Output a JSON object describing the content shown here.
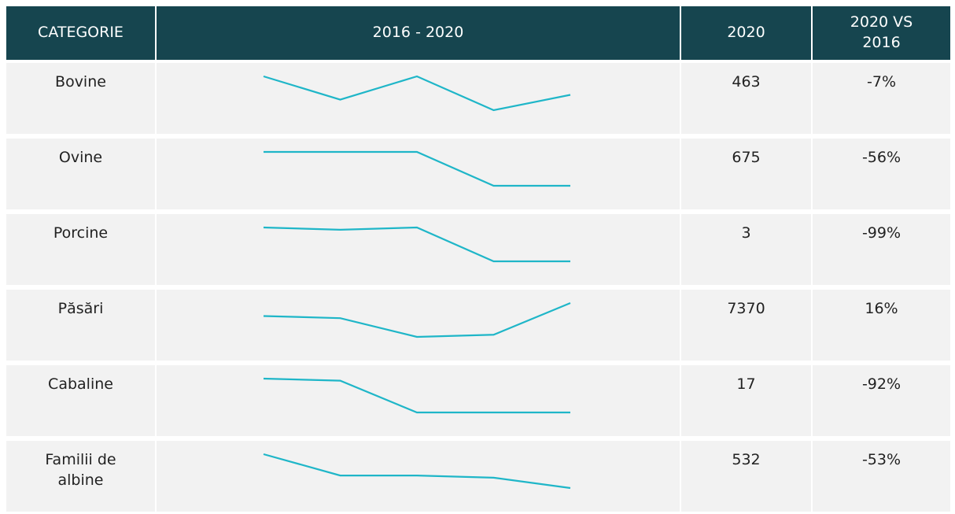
{
  "table": {
    "columns": [
      "CATEGORIE",
      "2016 - 2020",
      "2020",
      "2020 VS 2016"
    ],
    "line_color": "#1fb6c8",
    "rows": [
      {
        "category": "Bovine",
        "trend": [
          498,
          454,
          498,
          434,
          463
        ],
        "value": 463,
        "change": "-7%"
      },
      {
        "category": "Ovine",
        "trend": [
          1534,
          1534,
          1534,
          675,
          675
        ],
        "value": 675,
        "change": "-56%"
      },
      {
        "category": "Porcine",
        "trend": [
          300,
          280,
          300,
          3,
          3
        ],
        "value": 3,
        "change": "-99%"
      },
      {
        "category": "Păsări",
        "trend": [
          6353,
          6184,
          4714,
          4883,
          7370
        ],
        "value": 7370,
        "change": "16%"
      },
      {
        "category": "Cabaline",
        "trend": [
          212,
          200,
          17,
          17,
          17
        ],
        "value": 17,
        "change": "-92%"
      },
      {
        "category": "Familii de albine",
        "trend": [
          1132,
          754,
          754,
          715,
          532
        ],
        "value": 532,
        "change": "-53%"
      }
    ]
  }
}
